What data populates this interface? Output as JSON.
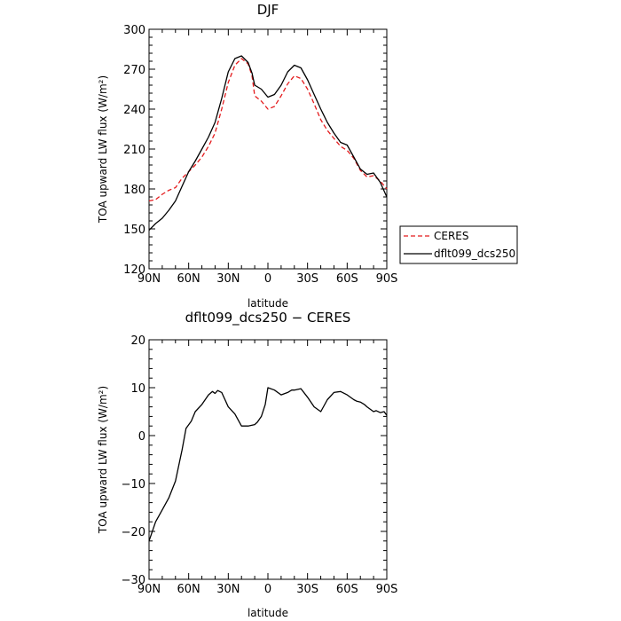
{
  "chart_data": [
    {
      "type": "line",
      "title": "DJF",
      "xlabel": "latitude",
      "ylabel": "TOA upward LW flux (W/m²)",
      "xticks": [
        "90N",
        "60N",
        "30N",
        "0",
        "30S",
        "60S",
        "90S"
      ],
      "xlim": [
        90,
        -90
      ],
      "ylim": [
        120,
        300
      ],
      "yticks": [
        "120",
        "150",
        "180",
        "210",
        "240",
        "270",
        "300"
      ],
      "legend_position": "right",
      "series": [
        {
          "name": "CERES",
          "color": "#e41a1c",
          "dash": "dashed",
          "x": [
            90,
            85,
            80,
            75,
            70,
            65,
            60,
            55,
            50,
            45,
            40,
            35,
            30,
            25,
            20,
            15,
            12,
            10,
            5,
            0,
            -5,
            -10,
            -15,
            -20,
            -25,
            -30,
            -35,
            -40,
            -45,
            -50,
            -55,
            -60,
            -65,
            -70,
            -75,
            -80,
            -85,
            -90
          ],
          "values": [
            171,
            172,
            176,
            179,
            181,
            188,
            193,
            198,
            204,
            212,
            222,
            240,
            260,
            273,
            278,
            274,
            265,
            250,
            246,
            240,
            242,
            250,
            259,
            265,
            263,
            255,
            244,
            232,
            224,
            218,
            212,
            209,
            203,
            194,
            189,
            190,
            186,
            180
          ]
        },
        {
          "name": "dflt099_dcs250",
          "color": "#000000",
          "dash": "solid",
          "x": [
            90,
            85,
            80,
            75,
            70,
            65,
            60,
            55,
            50,
            45,
            40,
            35,
            30,
            25,
            20,
            15,
            12,
            10,
            5,
            0,
            -5,
            -10,
            -15,
            -20,
            -25,
            -30,
            -35,
            -40,
            -45,
            -50,
            -55,
            -60,
            -65,
            -70,
            -75,
            -80,
            -85,
            -90
          ],
          "values": [
            149,
            154,
            158,
            164,
            171,
            182,
            193,
            201,
            210,
            219,
            230,
            248,
            268,
            278,
            280,
            275,
            267,
            258,
            255,
            249,
            251,
            258,
            268,
            273,
            271,
            262,
            251,
            240,
            230,
            222,
            215,
            213,
            204,
            195,
            191,
            192,
            185,
            174
          ]
        }
      ]
    },
    {
      "type": "line",
      "title": "dflt099_dcs250 − CERES",
      "xlabel": "latitude",
      "ylabel": "TOA upward LW flux (W/m²)",
      "xticks": [
        "90N",
        "60N",
        "30N",
        "0",
        "30S",
        "60S",
        "90S"
      ],
      "xlim": [
        90,
        -90
      ],
      "ylim": [
        -30,
        20
      ],
      "yticks": [
        "−30",
        "−20",
        "−10",
        "0",
        "10",
        "20"
      ],
      "series": [
        {
          "color": "#000000",
          "dash": "solid",
          "x": [
            90,
            85,
            80,
            75,
            70,
            65,
            62,
            58,
            55,
            50,
            45,
            42,
            40,
            38,
            35,
            30,
            25,
            20,
            15,
            10,
            8,
            5,
            2,
            0,
            -5,
            -10,
            -15,
            -18,
            -20,
            -25,
            -30,
            -35,
            -40,
            -45,
            -50,
            -55,
            -60,
            -65,
            -67,
            -70,
            -73,
            -75,
            -80,
            -82,
            -85,
            -88,
            -90
          ],
          "values": [
            -22,
            -18,
            -15.5,
            -13,
            -9.5,
            -3,
            1.5,
            3,
            5,
            6.5,
            8.5,
            9.2,
            8.8,
            9.4,
            9,
            6,
            4.5,
            2,
            2,
            2.3,
            2.8,
            4,
            6.5,
            10,
            9.5,
            8.5,
            9,
            9.5,
            9.5,
            9.8,
            8,
            6,
            5,
            7.5,
            9,
            9.2,
            8.5,
            7.5,
            7.2,
            7,
            6.5,
            6,
            5,
            5.2,
            4.8,
            5,
            4.2
          ]
        }
      ]
    }
  ]
}
